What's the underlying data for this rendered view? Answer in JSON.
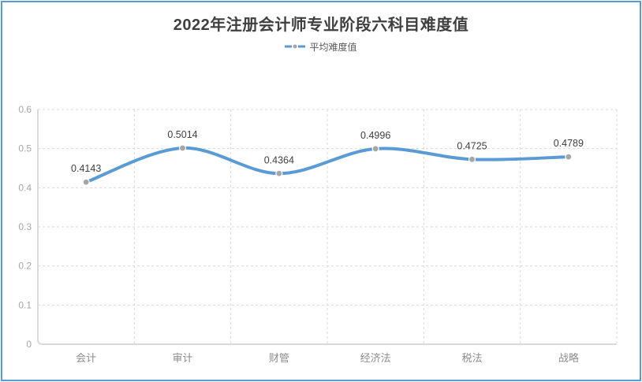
{
  "window": {
    "background": "#ffffff"
  },
  "header": {
    "title": "2022年注册会计师专业阶段六科目难度值"
  },
  "legend": {
    "label": "平均难度值"
  },
  "colors": {
    "border": "#5B9BD5",
    "line": "#5B9BD5",
    "marker": "#A6A6A6",
    "marker_ring": "#ffffff",
    "gridline": "#D9D9D9",
    "axis_line": "#D9D9D9",
    "title_text": "#3f3f3f",
    "data_label_text": "#404040",
    "x_axis_text": "#8c8c8c",
    "y_axis_text": "#a6a6a6",
    "legend_text": "#595959"
  },
  "chart_data": {
    "type": "line",
    "smooth": true,
    "title": "2022年注册会计师专业阶段六科目难度值",
    "xlabel": "",
    "ylabel": "",
    "categories": [
      "会计",
      "审计",
      "财管",
      "经济法",
      "税法",
      "战略"
    ],
    "series": [
      {
        "name": "平均难度值",
        "values": [
          0.4143,
          0.5014,
          0.4364,
          0.4996,
          0.4725,
          0.4789
        ],
        "data_labels": [
          "0.4143",
          "0.5014",
          "0.4364",
          "0.4996",
          "0.4725",
          "0.4789"
        ]
      }
    ],
    "ylim": [
      0,
      0.6
    ],
    "yticks": [
      0,
      0.1,
      0.2,
      0.3,
      0.4,
      0.5,
      0.6
    ],
    "ytick_labels": [
      "0",
      "0.1",
      "0.2",
      "0.3",
      "0.4",
      "0.5",
      "0.6"
    ],
    "grid": "dashed-horizontal-and-vertical",
    "legend_position": "top",
    "data_labels_visible": true
  }
}
